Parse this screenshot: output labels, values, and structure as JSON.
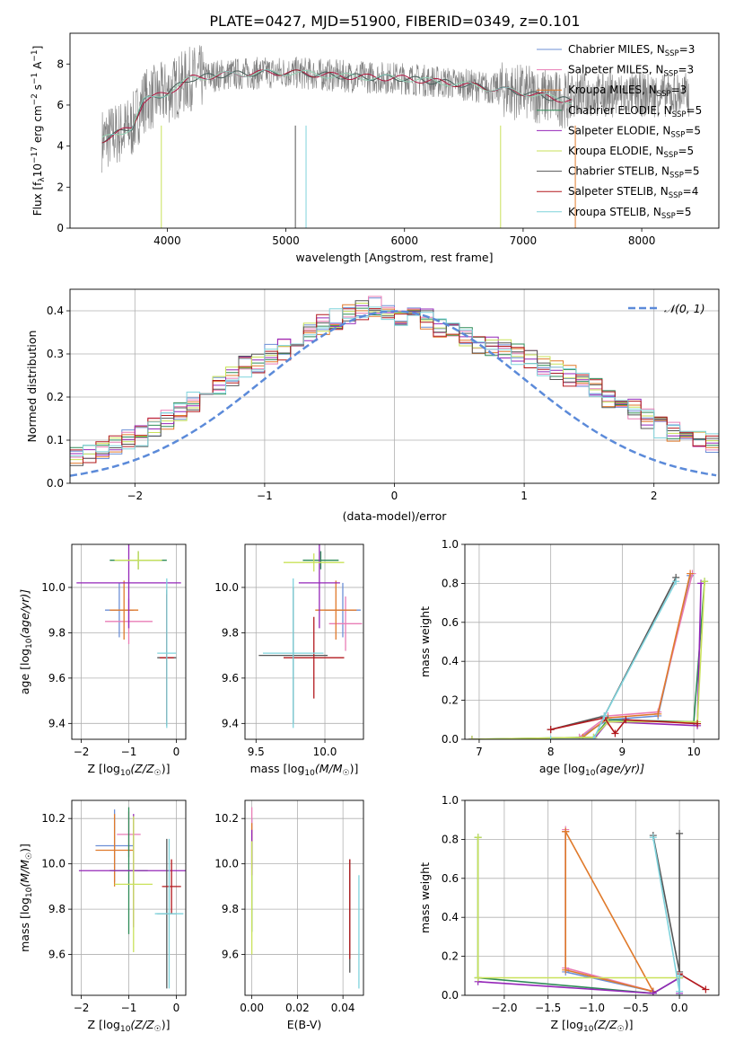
{
  "figure": {
    "title": "PLATE=0427, MJD=51900, FIBERID=0349, z=0.101"
  },
  "legend_series": [
    {
      "label": "Chabrier MILES, N",
      "sub": "SSP",
      "tail": "=3",
      "color": "#6c8fd6"
    },
    {
      "label": "Salpeter MILES, N",
      "sub": "SSP",
      "tail": "=3",
      "color": "#e97db6"
    },
    {
      "label": "Kroupa MILES, N",
      "sub": "SSP",
      "tail": "=3",
      "color": "#e07a2b"
    },
    {
      "label": "Chabrier ELODIE, N",
      "sub": "SSP",
      "tail": "=5",
      "color": "#2e8b57"
    },
    {
      "label": "Salpeter ELODIE, N",
      "sub": "SSP",
      "tail": "=5",
      "color": "#9426b8"
    },
    {
      "label": "Kroupa ELODIE, N",
      "sub": "SSP",
      "tail": "=5",
      "color": "#c9e25a"
    },
    {
      "label": "Chabrier STELIB, N",
      "sub": "SSP",
      "tail": "=5",
      "color": "#555555"
    },
    {
      "label": "Salpeter STELIB, N",
      "sub": "SSP",
      "tail": "=4",
      "color": "#b3191e"
    },
    {
      "label": "Kroupa STELIB, N",
      "sub": "SSP",
      "tail": "=5",
      "color": "#7fd3dc"
    }
  ],
  "chart_data": [
    {
      "id": "spectrum",
      "type": "line",
      "title": "PLATE=0427, MJD=51900, FIBERID=0349, z=0.101",
      "xlabel": "wavelength [Angstrom, rest frame]",
      "ylabel_main": "Flux [f",
      "ylabel_sub": "λ",
      "ylabel_tail": "10",
      "ylabel_exp1": "−17",
      "ylabel_unit": " erg cm",
      "ylabel_exp2": "−2",
      "ylabel_s": " s",
      "ylabel_exp3": "−1",
      "ylabel_a": " A",
      "ylabel_exp4": "−1",
      "ylabel_end": "]",
      "xlim": [
        3180,
        8650
      ],
      "ylim": [
        0,
        9.5
      ],
      "xticks": [
        "4000",
        "5000",
        "6000",
        "7000",
        "8000"
      ],
      "xtick_values": [
        4000,
        5000,
        6000,
        7000,
        8000
      ],
      "yticks": [
        "0",
        "2",
        "4",
        "6",
        "8"
      ],
      "ytick_values": [
        0,
        2,
        4,
        6,
        8
      ],
      "continuum": [
        {
          "x": 3450,
          "y": 4.3
        },
        {
          "x": 3700,
          "y": 4.9
        },
        {
          "x": 3800,
          "y": 6.2
        },
        {
          "x": 4000,
          "y": 6.6
        },
        {
          "x": 4200,
          "y": 7.3
        },
        {
          "x": 4500,
          "y": 7.5
        },
        {
          "x": 5000,
          "y": 7.6
        },
        {
          "x": 5500,
          "y": 7.4
        },
        {
          "x": 6000,
          "y": 7.3
        },
        {
          "x": 6500,
          "y": 7.0
        },
        {
          "x": 7000,
          "y": 6.6
        },
        {
          "x": 7400,
          "y": 6.2
        }
      ],
      "data_range": [
        3450,
        8400
      ],
      "data_color": "#808080"
    },
    {
      "id": "residuals",
      "type": "histogram",
      "xlabel": "(data-model)/error",
      "ylabel": "Normed distribution",
      "xlim": [
        -2.5,
        2.5
      ],
      "ylim": [
        0,
        0.45
      ],
      "xticks": [
        "−2",
        "−1",
        "0",
        "1",
        "2"
      ],
      "xtick_values": [
        -2,
        -1,
        0,
        1,
        2
      ],
      "yticks": [
        "0.0",
        "0.1",
        "0.2",
        "0.3",
        "0.4"
      ],
      "ytick_values": [
        0,
        0.1,
        0.2,
        0.3,
        0.4
      ],
      "bin_width": 0.1,
      "envelope": [
        0.02,
        0.03,
        0.04,
        0.045,
        0.05,
        0.06,
        0.07,
        0.08,
        0.09,
        0.1,
        0.11,
        0.13,
        0.15,
        0.17,
        0.19,
        0.21,
        0.23,
        0.25,
        0.27,
        0.28,
        0.3,
        0.31,
        0.33,
        0.35,
        0.37,
        0.38,
        0.39,
        0.4,
        0.41,
        0.4,
        0.39,
        0.4,
        0.38,
        0.36,
        0.35,
        0.34,
        0.32,
        0.32,
        0.31,
        0.3,
        0.29,
        0.27,
        0.26,
        0.25,
        0.24,
        0.22,
        0.2,
        0.18,
        0.17,
        0.15,
        0.13,
        0.12,
        0.11,
        0.1,
        0.09,
        0.08,
        0.07,
        0.06,
        0.05,
        0.045
      ],
      "normal_label": "𝒩(0, 1)",
      "normal_color": "#5b8ad9",
      "normal_mean": 0,
      "normal_sigma": 1
    },
    {
      "id": "age_vs_Z",
      "type": "errorbar",
      "xlabel": "Z [log",
      "xlabel_sub": "10",
      "xlabel_tail": "(Z/Z",
      "xlabel_sun": "☉",
      "xlabel_end": ")]",
      "ylabel": "age  [log",
      "ylabel_sub": "10",
      "ylabel_tail": "(age/yr)]",
      "xlim": [
        -2.2,
        0.2
      ],
      "ylim": [
        9.33,
        10.19
      ],
      "xticks": [
        "−2",
        "−1",
        "0"
      ],
      "xtick_values": [
        -2,
        -1,
        0
      ],
      "yticks": [
        "9.4",
        "9.6",
        "9.8",
        "10.0"
      ],
      "ytick_values": [
        9.4,
        9.6,
        9.8,
        10.0
      ],
      "points": [
        {
          "x": -1.2,
          "y": 9.9,
          "xerr": 0.3,
          "yerr": 0.12,
          "color": "#6c8fd6"
        },
        {
          "x": -1.0,
          "y": 9.85,
          "xerr": 0.5,
          "yerr": 0.1,
          "color": "#e97db6"
        },
        {
          "x": -1.1,
          "y": 9.9,
          "xerr": 0.3,
          "yerr": 0.13,
          "color": "#e07a2b"
        },
        {
          "x": -0.8,
          "y": 10.12,
          "xerr": 0.6,
          "yerr": 0.04,
          "color": "#2e8b57"
        },
        {
          "x": -1.0,
          "y": 10.02,
          "xerr": 1.1,
          "yerr": 0.2,
          "color": "#9426b8"
        },
        {
          "x": -0.8,
          "y": 10.12,
          "xerr": 0.5,
          "yerr": 0.04,
          "color": "#c9e25a"
        },
        {
          "x": -0.2,
          "y": 9.69,
          "xerr": 0.2,
          "yerr": 0.3,
          "color": "#555555"
        },
        {
          "x": -0.2,
          "y": 9.69,
          "xerr": 0.15,
          "yerr": 0.28,
          "color": "#b3191e"
        },
        {
          "x": -0.2,
          "y": 9.71,
          "xerr": 0.2,
          "yerr": 0.33,
          "color": "#7fd3dc"
        }
      ]
    },
    {
      "id": "age_vs_mass",
      "type": "errorbar",
      "xlabel": "mass [log",
      "xlabel_sub": "10",
      "xlabel_tail": "(M/M",
      "xlabel_sun": "☉",
      "xlabel_end": ")]",
      "xlim": [
        9.42,
        10.28
      ],
      "ylim": [
        9.33,
        10.19
      ],
      "xticks": [
        "9.5",
        "10.0"
      ],
      "xtick_values": [
        9.5,
        10.0
      ],
      "yticks": [
        "9.4",
        "9.6",
        "9.8",
        "10.0"
      ],
      "ytick_values": [
        9.4,
        9.6,
        9.8,
        10.0
      ],
      "points": [
        {
          "x": 10.13,
          "y": 9.9,
          "xerr": 0.13,
          "yerr": 0.12,
          "color": "#6c8fd6"
        },
        {
          "x": 10.15,
          "y": 9.84,
          "xerr": 0.12,
          "yerr": 0.12,
          "color": "#e97db6"
        },
        {
          "x": 10.08,
          "y": 9.9,
          "xerr": 0.15,
          "yerr": 0.13,
          "color": "#e07a2b"
        },
        {
          "x": 9.97,
          "y": 10.12,
          "xerr": 0.13,
          "yerr": 0.04,
          "color": "#2e8b57"
        },
        {
          "x": 9.96,
          "y": 10.02,
          "xerr": 0.15,
          "yerr": 0.2,
          "color": "#9426b8"
        },
        {
          "x": 9.92,
          "y": 10.11,
          "xerr": 0.22,
          "yerr": 0.04,
          "color": "#c9e25a"
        },
        {
          "x": 9.77,
          "y": 9.7,
          "xerr": 0.25,
          "yerr": 0.3,
          "color": "#555555"
        },
        {
          "x": 9.92,
          "y": 9.69,
          "xerr": 0.22,
          "yerr": 0.18,
          "color": "#b3191e"
        },
        {
          "x": 9.77,
          "y": 9.71,
          "xerr": 0.22,
          "yerr": 0.33,
          "color": "#7fd3dc"
        }
      ]
    },
    {
      "id": "massweight_vs_age",
      "type": "line",
      "xlabel": "age  [log",
      "xlabel_sub": "10",
      "xlabel_tail": "(age/yr)]",
      "ylabel": "mass weight",
      "xlim": [
        6.8,
        10.35
      ],
      "ylim": [
        0,
        1
      ],
      "xticks": [
        "7",
        "8",
        "9",
        "10"
      ],
      "xtick_values": [
        7,
        8,
        9,
        10
      ],
      "yticks": [
        "0.0",
        "0.2",
        "0.4",
        "0.6",
        "0.8",
        "1.0"
      ],
      "ytick_values": [
        0,
        0.2,
        0.4,
        0.6,
        0.8,
        1.0
      ],
      "series": [
        {
          "color": "#6c8fd6",
          "points": [
            [
              8.4,
              0.01
            ],
            [
              8.8,
              0.1
            ],
            [
              9.5,
              0.12
            ],
            [
              9.95,
              0.84
            ]
          ]
        },
        {
          "color": "#e97db6",
          "points": [
            [
              8.4,
              0.01
            ],
            [
              8.8,
              0.12
            ],
            [
              9.5,
              0.14
            ],
            [
              9.98,
              0.85
            ]
          ]
        },
        {
          "color": "#e07a2b",
          "points": [
            [
              8.45,
              0.01
            ],
            [
              8.8,
              0.11
            ],
            [
              9.5,
              0.13
            ],
            [
              9.95,
              0.85
            ]
          ]
        },
        {
          "color": "#2e8b57",
          "points": [
            [
              6.9,
              0.0
            ],
            [
              8.6,
              0.01
            ],
            [
              8.8,
              0.1
            ],
            [
              10.0,
              0.09
            ],
            [
              10.15,
              0.81
            ]
          ]
        },
        {
          "color": "#9426b8",
          "points": [
            [
              6.9,
              0.0
            ],
            [
              8.6,
              0.0
            ],
            [
              8.8,
              0.09
            ],
            [
              10.05,
              0.07
            ],
            [
              10.1,
              0.8
            ]
          ]
        },
        {
          "color": "#c9e25a",
          "points": [
            [
              6.9,
              0.0
            ],
            [
              8.6,
              0.01
            ],
            [
              8.8,
              0.09
            ],
            [
              10.05,
              0.09
            ],
            [
              10.15,
              0.81
            ]
          ]
        },
        {
          "color": "#555555",
          "points": [
            [
              8.0,
              0.05
            ],
            [
              8.75,
              0.12
            ],
            [
              9.75,
              0.83
            ]
          ]
        },
        {
          "color": "#b3191e",
          "points": [
            [
              8.0,
              0.05
            ],
            [
              8.75,
              0.11
            ],
            [
              8.9,
              0.03
            ],
            [
              9.05,
              0.1
            ],
            [
              10.05,
              0.08
            ]
          ]
        },
        {
          "color": "#7fd3dc",
          "points": [
            [
              8.0,
              0.0
            ],
            [
              8.6,
              0.0
            ],
            [
              8.75,
              0.12
            ],
            [
              9.75,
              0.81
            ]
          ]
        }
      ]
    },
    {
      "id": "mass_vs_Z",
      "type": "errorbar",
      "xlabel": "Z [log",
      "xlabel_sub": "10",
      "xlabel_tail": "(Z/Z",
      "xlabel_sun": "☉",
      "xlabel_end": ")]",
      "ylabel": "mass [log",
      "ylabel_sub": "10",
      "ylabel_tail": "(M/M",
      "ylabel_sun": "☉",
      "ylabel_end": ")]",
      "xlim": [
        -2.2,
        0.2
      ],
      "ylim": [
        9.42,
        10.28
      ],
      "xticks": [
        "−2",
        "−1",
        "0"
      ],
      "xtick_values": [
        -2,
        -1,
        0
      ],
      "yticks": [
        "9.6",
        "9.8",
        "10.0",
        "10.2"
      ],
      "ytick_values": [
        9.6,
        9.8,
        10.0,
        10.2
      ],
      "points": [
        {
          "x": -1.3,
          "y": 10.08,
          "xerr": 0.4,
          "yerr": 0.16,
          "color": "#6c8fd6"
        },
        {
          "x": -1.0,
          "y": 10.13,
          "xerr": 0.25,
          "yerr": 0.1,
          "color": "#e97db6"
        },
        {
          "x": -1.3,
          "y": 10.06,
          "xerr": 0.4,
          "yerr": 0.16,
          "color": "#e07a2b"
        },
        {
          "x": -1.0,
          "y": 9.97,
          "xerr": 0.4,
          "yerr": 0.28,
          "color": "#2e8b57"
        },
        {
          "x": -0.9,
          "y": 9.97,
          "xerr": 1.15,
          "yerr": 0.25,
          "color": "#9426b8"
        },
        {
          "x": -0.9,
          "y": 9.91,
          "xerr": 0.4,
          "yerr": 0.3,
          "color": "#c9e25a"
        },
        {
          "x": -0.2,
          "y": 9.78,
          "xerr": 0.2,
          "yerr": 0.33,
          "color": "#555555"
        },
        {
          "x": -0.1,
          "y": 9.9,
          "xerr": 0.2,
          "yerr": 0.12,
          "color": "#b3191e"
        },
        {
          "x": -0.15,
          "y": 9.78,
          "xerr": 0.3,
          "yerr": 0.33,
          "color": "#7fd3dc"
        }
      ]
    },
    {
      "id": "mass_vs_ebv",
      "type": "errorbar",
      "xlabel": "E(B-V)",
      "xlim": [
        -0.003,
        0.049
      ],
      "ylim": [
        9.42,
        10.28
      ],
      "xticks": [
        "0.00",
        "0.02",
        "0.04"
      ],
      "xtick_values": [
        0.0,
        0.02,
        0.04
      ],
      "yticks": [
        "9.6",
        "9.8",
        "10.0",
        "10.2"
      ],
      "ytick_values": [
        9.6,
        9.8,
        10.0,
        10.2
      ],
      "points": [
        {
          "x": 0.0,
          "y": 10.1,
          "xerr": 0,
          "yerr": 0.1,
          "color": "#6c8fd6"
        },
        {
          "x": 0.0,
          "y": 10.1,
          "xerr": 0,
          "yerr": 0.15,
          "color": "#e97db6"
        },
        {
          "x": 0.0,
          "y": 10.08,
          "xerr": 0,
          "yerr": 0.1,
          "color": "#e07a2b"
        },
        {
          "x": 0.0,
          "y": 9.9,
          "xerr": 0,
          "yerr": 0.2,
          "color": "#2e8b57"
        },
        {
          "x": 0.0,
          "y": 10.05,
          "xerr": 0,
          "yerr": 0.1,
          "color": "#9426b8"
        },
        {
          "x": 0.0,
          "y": 9.85,
          "xerr": 0,
          "yerr": 0.25,
          "color": "#c9e25a"
        },
        {
          "x": 0.043,
          "y": 9.77,
          "xerr": 0,
          "yerr": 0.25,
          "color": "#555555"
        },
        {
          "x": 0.043,
          "y": 9.8,
          "xerr": 0,
          "yerr": 0.22,
          "color": "#b3191e"
        },
        {
          "x": 0.047,
          "y": 9.7,
          "xerr": 0,
          "yerr": 0.25,
          "color": "#7fd3dc"
        }
      ]
    },
    {
      "id": "massweight_vs_Z",
      "type": "line",
      "xlabel": "Z [log",
      "xlabel_sub": "10",
      "xlabel_tail": "(Z/Z",
      "xlabel_sun": "☉",
      "xlabel_end": ")]",
      "ylabel": "mass weight",
      "xlim": [
        -2.45,
        0.45
      ],
      "ylim": [
        0,
        1
      ],
      "xticks": [
        "−2.0",
        "−1.5",
        "−1.0",
        "−0.5",
        "0.0"
      ],
      "xtick_values": [
        -2.0,
        -1.5,
        -1.0,
        -0.5,
        0.0
      ],
      "yticks": [
        "0.0",
        "0.2",
        "0.4",
        "0.6",
        "0.8",
        "1.0"
      ],
      "ytick_values": [
        0,
        0.2,
        0.4,
        0.6,
        0.8,
        1.0
      ],
      "series": [
        {
          "color": "#6c8fd6",
          "points": [
            [
              -1.3,
              0.84
            ],
            [
              -1.3,
              0.12
            ],
            [
              -0.3,
              0.02
            ]
          ]
        },
        {
          "color": "#e97db6",
          "points": [
            [
              -1.3,
              0.85
            ],
            [
              -1.3,
              0.14
            ],
            [
              -0.3,
              0.02
            ]
          ]
        },
        {
          "color": "#e07a2b",
          "points": [
            [
              -1.3,
              0.84
            ],
            [
              -1.3,
              0.13
            ],
            [
              -0.3,
              0.02
            ],
            [
              -1.3,
              0.84
            ]
          ]
        },
        {
          "color": "#2e8b57",
          "points": [
            [
              -2.3,
              0.81
            ],
            [
              -2.3,
              0.09
            ],
            [
              -0.3,
              0.01
            ],
            [
              0.0,
              0.09
            ],
            [
              0.0,
              0.0
            ]
          ]
        },
        {
          "color": "#9426b8",
          "points": [
            [
              -2.3,
              0.07
            ],
            [
              -0.3,
              0.01
            ],
            [
              0.0,
              0.09
            ],
            [
              0.0,
              0.01
            ]
          ]
        },
        {
          "color": "#c9e25a",
          "points": [
            [
              -2.3,
              0.81
            ],
            [
              -2.3,
              0.09
            ],
            [
              0.0,
              0.09
            ]
          ]
        },
        {
          "color": "#555555",
          "points": [
            [
              0.0,
              0.83
            ],
            [
              0.0,
              0.12
            ],
            [
              -0.3,
              0.82
            ]
          ]
        },
        {
          "color": "#b3191e",
          "points": [
            [
              0.0,
              0.11
            ],
            [
              0.3,
              0.03
            ]
          ]
        },
        {
          "color": "#7fd3dc",
          "points": [
            [
              -0.3,
              0.81
            ],
            [
              0.0,
              0.02
            ],
            [
              0.0,
              0.1
            ]
          ]
        }
      ]
    }
  ]
}
